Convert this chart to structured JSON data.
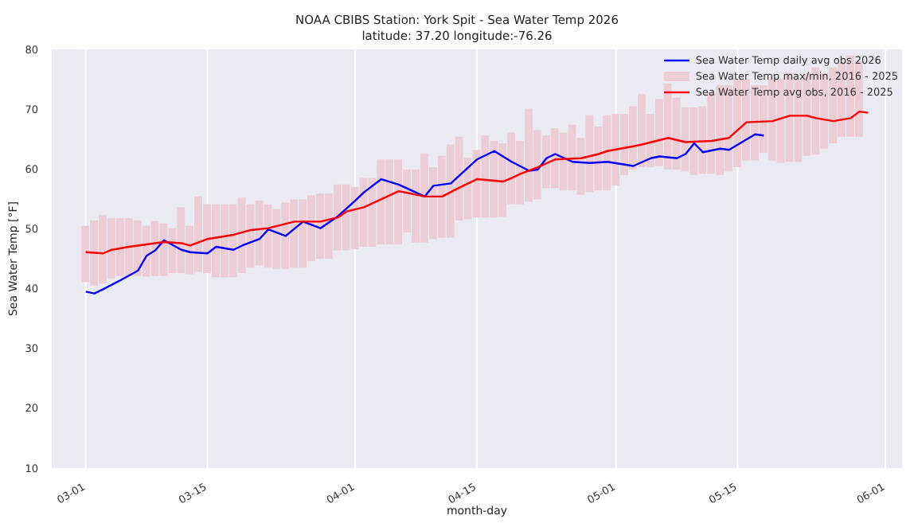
{
  "chart_data": {
    "type": "line",
    "title": "NOAA CBIBS Station: York Spit - Sea Water Temp 2026",
    "subtitle": "latitude: 37.20 longitude:-76.26",
    "xlabel": "month-day",
    "ylabel": "Sea Water Temp [°F]",
    "xlim": [
      "--02-25",
      "--06-03"
    ],
    "xticks": [
      {
        "value": "--03-01",
        "label": "03-01"
      },
      {
        "value": "--03-15",
        "label": "03-15"
      },
      {
        "value": "--04-01",
        "label": "04-01"
      },
      {
        "value": "--04-15",
        "label": "04-15"
      },
      {
        "value": "--05-01",
        "label": "05-01"
      },
      {
        "value": "--05-15",
        "label": "05-15"
      },
      {
        "value": "--06-01",
        "label": "06-01"
      }
    ],
    "ylim": [
      10,
      80
    ],
    "yticks": [
      10,
      20,
      30,
      40,
      50,
      60,
      70,
      80
    ],
    "grid": "x",
    "legend": "top right",
    "series": [
      {
        "name": "Sea Water Temp daily avg obs 2026",
        "color": "#0000ff",
        "x": [
          "--03-01",
          "--03-02",
          "--03-03",
          "--03-05",
          "--03-07",
          "--03-08",
          "--03-09",
          "--03-10",
          "--03-12",
          "--03-13",
          "--03-15",
          "--03-16",
          "--03-18",
          "--03-19",
          "--03-21",
          "--03-22",
          "--03-24",
          "--03-26",
          "--03-28",
          "--03-30",
          "--04-01",
          "--04-02",
          "--04-04",
          "--04-06",
          "--04-09",
          "--04-10",
          "--04-12",
          "--04-15",
          "--04-17",
          "--04-19",
          "--04-21",
          "--04-22",
          "--04-23",
          "--04-24",
          "--04-26",
          "--04-28",
          "--04-30",
          "--05-03",
          "--05-05",
          "--05-06",
          "--05-08",
          "--05-09",
          "--05-10",
          "--05-11",
          "--05-13",
          "--05-14",
          "--05-17",
          "--05-18"
        ],
        "values": [
          39.5,
          39.2,
          39.9,
          41.4,
          43.0,
          45.5,
          46.4,
          48.1,
          46.5,
          46.1,
          45.9,
          47.0,
          46.5,
          47.2,
          48.3,
          49.9,
          48.8,
          51.2,
          50.1,
          52.1,
          54.7,
          56.1,
          58.3,
          57.4,
          55.4,
          57.2,
          57.6,
          61.6,
          63.0,
          61.2,
          59.7,
          59.9,
          61.8,
          62.5,
          61.2,
          61.0,
          61.2,
          60.5,
          61.8,
          62.1,
          61.8,
          62.5,
          64.3,
          62.8,
          63.4,
          63.2,
          65.8,
          65.6
        ]
      },
      {
        "name": "Sea Water Temp max/min, 2016 - 2025",
        "type": "bar",
        "color": "#ecccd5",
        "x": [
          "--03-01",
          "--03-02",
          "--03-03",
          "--03-04",
          "--03-05",
          "--03-06",
          "--03-07",
          "--03-08",
          "--03-09",
          "--03-10",
          "--03-11",
          "--03-12",
          "--03-13",
          "--03-14",
          "--03-15",
          "--03-16",
          "--03-17",
          "--03-18",
          "--03-19",
          "--03-20",
          "--03-21",
          "--03-22",
          "--03-23",
          "--03-24",
          "--03-25",
          "--03-26",
          "--03-27",
          "--03-28",
          "--03-29",
          "--03-30",
          "--03-31",
          "--04-01",
          "--04-02",
          "--04-03",
          "--04-04",
          "--04-05",
          "--04-06",
          "--04-07",
          "--04-08",
          "--04-09",
          "--04-10",
          "--04-11",
          "--04-12",
          "--04-13",
          "--04-14",
          "--04-15",
          "--04-16",
          "--04-17",
          "--04-18",
          "--04-19",
          "--04-20",
          "--04-21",
          "--04-22",
          "--04-23",
          "--04-24",
          "--04-25",
          "--04-26",
          "--04-27",
          "--04-28",
          "--04-29",
          "--04-30",
          "--05-01",
          "--05-02",
          "--05-03",
          "--05-04",
          "--05-05",
          "--05-06",
          "--05-07",
          "--05-08",
          "--05-09",
          "--05-10",
          "--05-11",
          "--05-12",
          "--05-13",
          "--05-14",
          "--05-15",
          "--05-16",
          "--05-17",
          "--05-18",
          "--05-19",
          "--05-20",
          "--05-21",
          "--05-22",
          "--05-23",
          "--05-24",
          "--05-25",
          "--05-26",
          "--05-27",
          "--05-28",
          "--05-29"
        ],
        "base": [
          41.1,
          40.5,
          40.8,
          41.7,
          42.1,
          42.1,
          42.1,
          42.0,
          42.1,
          42.1,
          42.6,
          42.6,
          42.4,
          42.8,
          42.6,
          41.9,
          41.9,
          41.9,
          42.6,
          43.5,
          43.9,
          43.5,
          43.3,
          43.3,
          43.5,
          43.5,
          44.6,
          45.0,
          45.0,
          46.4,
          46.4,
          46.6,
          47.0,
          47.0,
          47.4,
          47.4,
          47.4,
          49.4,
          47.7,
          47.7,
          48.3,
          48.5,
          48.5,
          51.4,
          51.6,
          51.9,
          51.9,
          51.9,
          52.0,
          54.1,
          54.1,
          54.5,
          54.9,
          56.8,
          56.8,
          56.4,
          56.4,
          55.7,
          56.1,
          56.4,
          56.4,
          57.2,
          59.0,
          59.9,
          60.3,
          60.3,
          60.5,
          59.9,
          59.9,
          59.6,
          59.0,
          59.2,
          59.2,
          59.0,
          59.6,
          60.3,
          61.4,
          61.4,
          62.7,
          61.4,
          61.0,
          61.2,
          61.2,
          62.2,
          62.4,
          63.4,
          64.3,
          65.4,
          65.4,
          65.4
        ],
        "values": [
          9.4,
          10.9,
          11.5,
          10.1,
          9.7,
          9.7,
          9.3,
          8.5,
          9.2,
          8.8,
          7.5,
          11.0,
          8.1,
          12.6,
          11.5,
          12.2,
          12.2,
          12.2,
          12.6,
          10.6,
          10.8,
          10.6,
          10.0,
          11.1,
          11.4,
          11.4,
          11.0,
          10.9,
          10.9,
          11.0,
          11.0,
          10.4,
          11.5,
          11.5,
          14.2,
          14.2,
          14.2,
          10.5,
          12.2,
          14.9,
          12.0,
          13.7,
          15.6,
          14.0,
          10.3,
          11.3,
          13.7,
          12.8,
          12.3,
          12.0,
          10.6,
          15.6,
          11.6,
          8.8,
          10.0,
          9.7,
          11.0,
          9.5,
          12.9,
          10.7,
          12.6,
          12.0,
          10.2,
          10.6,
          12.2,
          8.9,
          11.2,
          14.4,
          12.0,
          10.7,
          11.3,
          11.3,
          13.5,
          15.0,
          14.4,
          14.7,
          13.6,
          12.6,
          11.3,
          13.6,
          14.0,
          14.8,
          13.8,
          13.8,
          14.6,
          12.6,
          12.7,
          12.6,
          13.6,
          12.6
        ]
      },
      {
        "name": "Sea Water Temp avg obs, 2016 - 2025",
        "color": "#ff0000",
        "x": [
          "--03-01",
          "--03-03",
          "--03-04",
          "--03-06",
          "--03-08",
          "--03-10",
          "--03-12",
          "--03-13",
          "--03-15",
          "--03-18",
          "--03-20",
          "--03-22",
          "--03-25",
          "--03-28",
          "--03-30",
          "--03-31",
          "--04-02",
          "--04-06",
          "--04-09",
          "--04-11",
          "--04-13",
          "--04-15",
          "--04-18",
          "--04-19",
          "--04-20",
          "--04-22",
          "--04-24",
          "--04-27",
          "--04-29",
          "--04-30",
          "--05-03",
          "--05-04",
          "--05-07",
          "--05-09",
          "--05-12",
          "--05-14",
          "--05-15",
          "--05-16",
          "--05-19",
          "--05-21",
          "--05-23",
          "--05-24",
          "--05-26",
          "--05-28",
          "--05-29",
          "--05-30"
        ],
        "values": [
          46.1,
          45.9,
          46.5,
          47.0,
          47.4,
          47.8,
          47.6,
          47.2,
          48.3,
          49.0,
          49.8,
          50.1,
          51.2,
          51.2,
          51.9,
          52.9,
          53.6,
          56.3,
          55.4,
          55.4,
          56.9,
          58.3,
          57.9,
          58.5,
          59.2,
          60.3,
          61.6,
          61.8,
          62.5,
          63.0,
          63.8,
          64.1,
          65.2,
          64.5,
          64.7,
          65.2,
          66.5,
          67.8,
          68.0,
          68.9,
          68.9,
          68.5,
          68.0,
          68.5,
          69.6,
          69.4
        ]
      }
    ]
  }
}
